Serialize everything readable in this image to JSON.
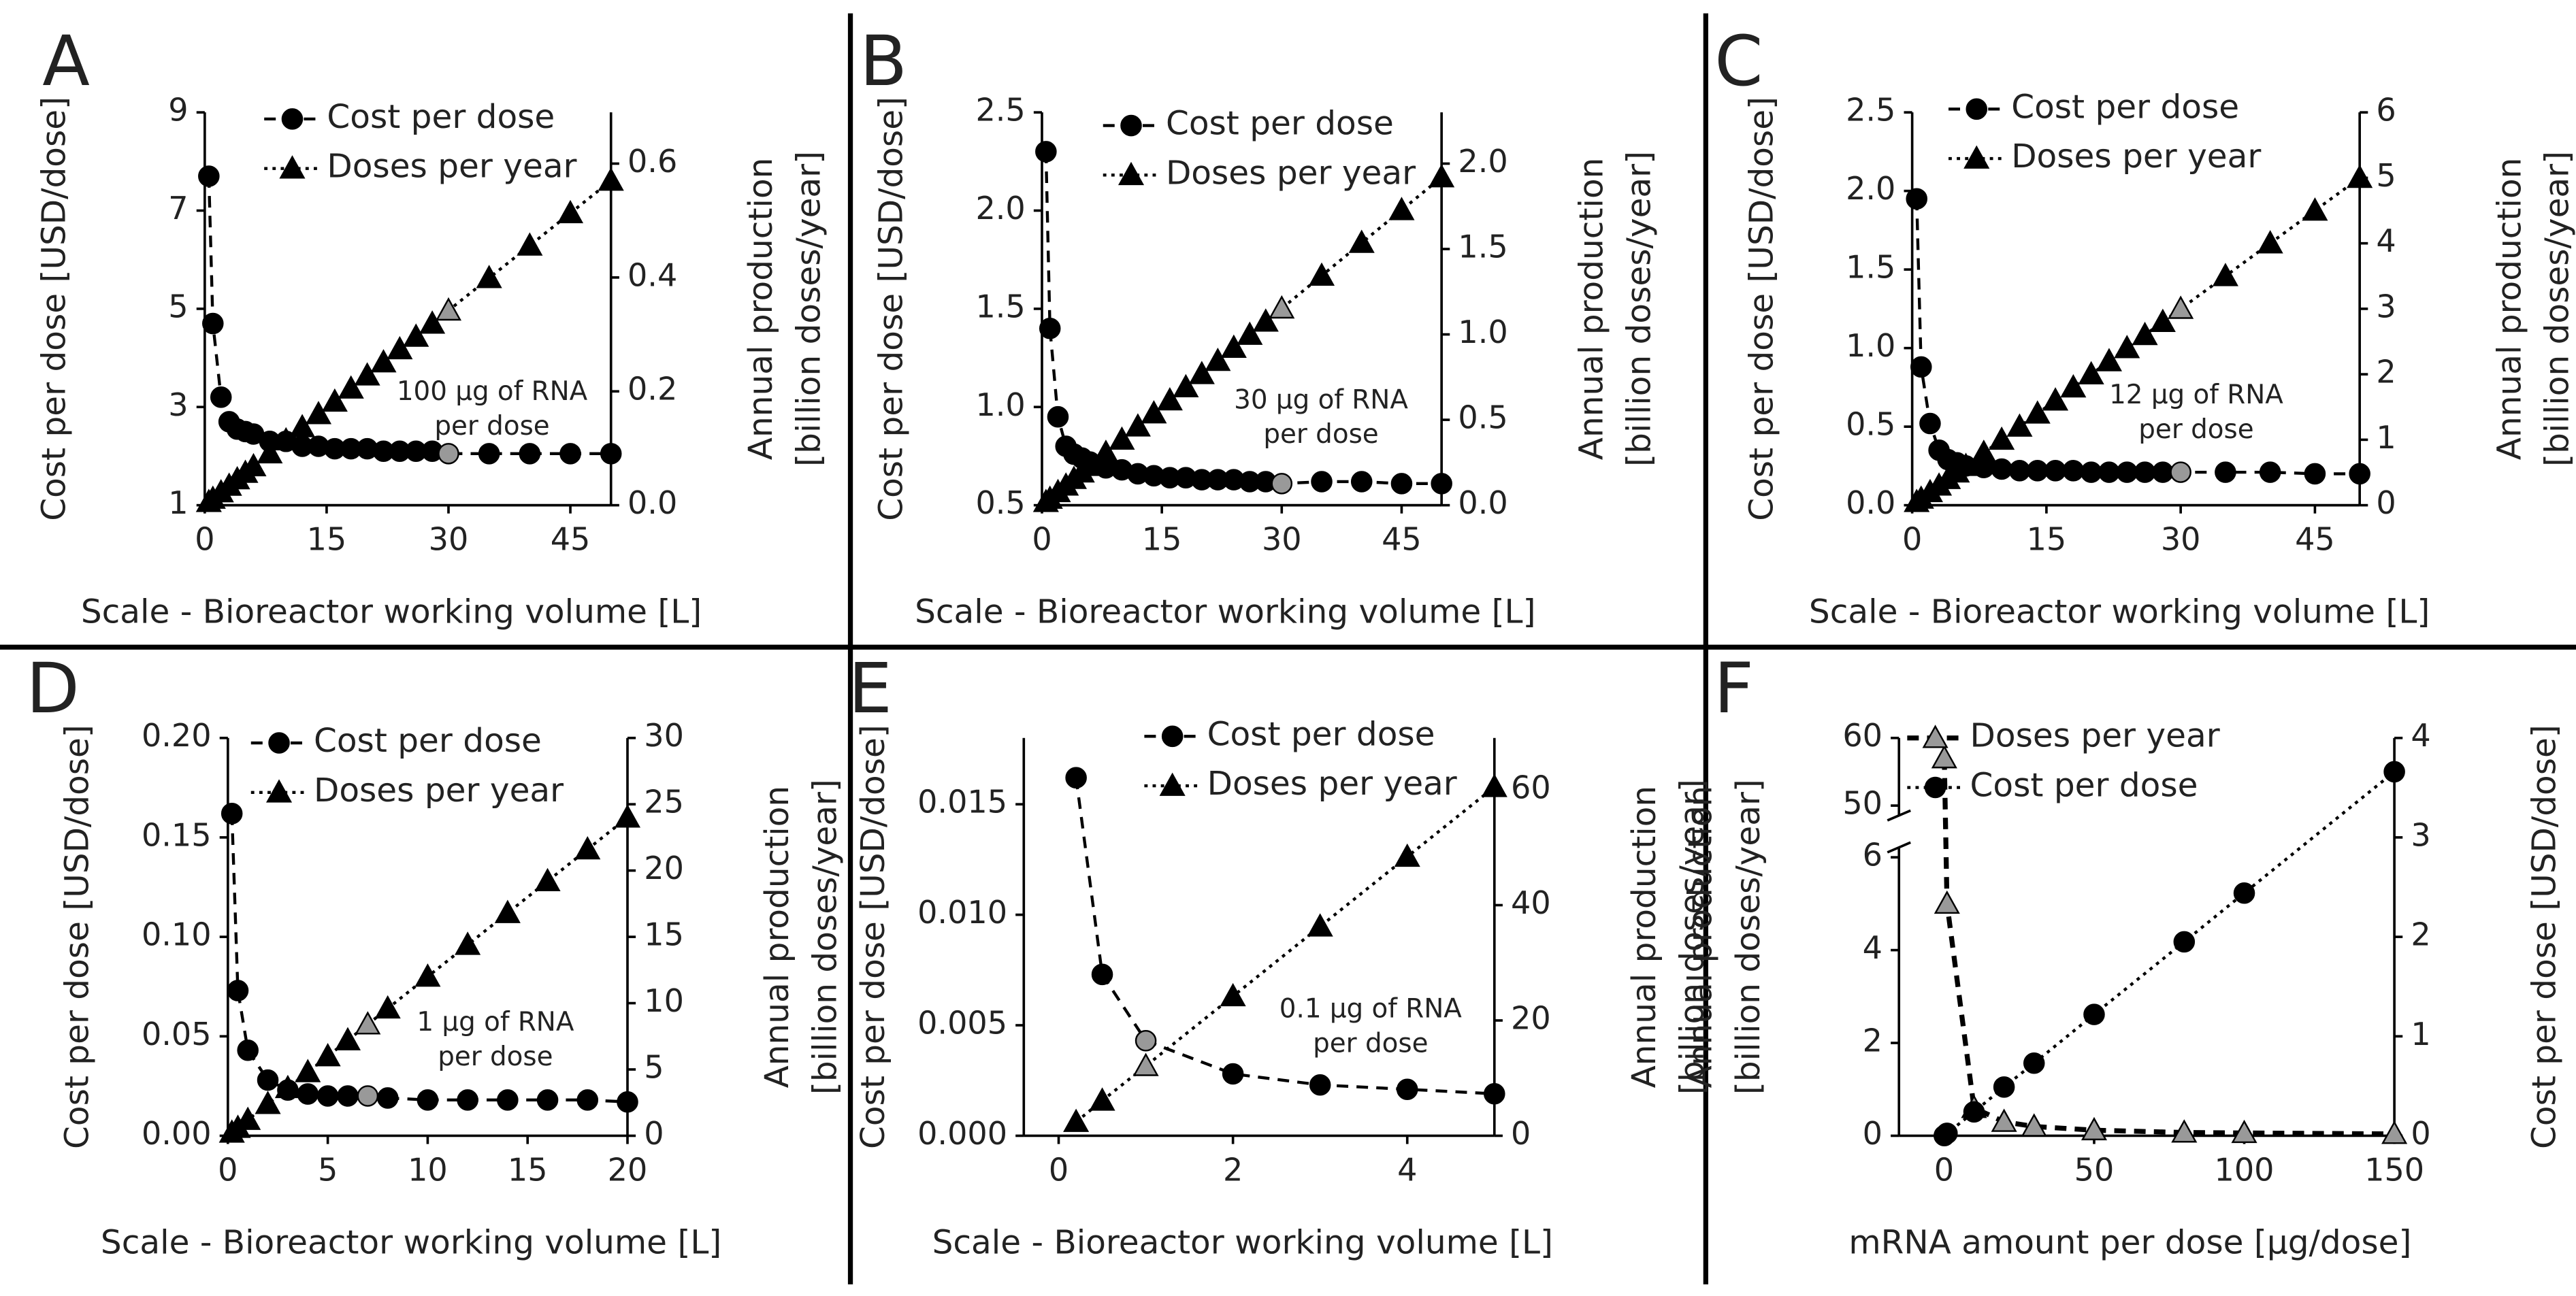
{
  "chart_data": [
    {
      "type": "line",
      "label": "A",
      "xlabel": "Scale - Bioreactor working volume [L]",
      "ylabel": "Cost per dose [USD/dose]",
      "y2label": [
        "Annual production",
        "[billion doses/year]"
      ],
      "annotation": [
        "100 µg of RNA",
        "per dose"
      ],
      "x": [
        0.5,
        1,
        2,
        3,
        4,
        5,
        6,
        8,
        10,
        12,
        14,
        16,
        18,
        20,
        22,
        24,
        26,
        28,
        30,
        35,
        40,
        45,
        50
      ],
      "xlim": [
        0,
        50
      ],
      "xticks": [
        0,
        15,
        30,
        45
      ],
      "ylim": [
        1,
        9
      ],
      "yticks": [
        1,
        3,
        5,
        7,
        9
      ],
      "y2lim": [
        0,
        0.69
      ],
      "y2ticks": [
        {
          "value": 0,
          "label": "0.0"
        },
        {
          "value": 0.2,
          "label": "0.2"
        },
        {
          "value": 0.4,
          "label": "0.4"
        },
        {
          "value": 0.6,
          "label": "0.6"
        }
      ],
      "highlight": {
        "x": 30,
        "color": "#999999"
      },
      "legend": "upper left",
      "series": [
        {
          "name": "Cost per dose",
          "color": "#000000",
          "line_color": "#000000",
          "marker": "circle",
          "linestyle": "dashed",
          "axis": "y",
          "values": [
            7.7,
            4.7,
            3.2,
            2.7,
            2.55,
            2.5,
            2.45,
            2.3,
            2.3,
            2.2,
            2.2,
            2.15,
            2.15,
            2.15,
            2.1,
            2.1,
            2.1,
            2.1,
            2.05,
            2.05,
            2.05,
            2.05,
            2.05
          ]
        },
        {
          "name": "Doses per year",
          "color": "#000000",
          "line_color": "#000000",
          "marker": "triangle",
          "linestyle": "dotted",
          "axis": "y2",
          "values": [
            0.0057,
            0.0114,
            0.0228,
            0.0342,
            0.0456,
            0.057,
            0.0684,
            0.0912,
            0.114,
            0.137,
            0.16,
            0.182,
            0.205,
            0.228,
            0.251,
            0.274,
            0.296,
            0.319,
            0.342,
            0.399,
            0.456,
            0.513,
            0.57
          ]
        }
      ]
    },
    {
      "type": "line",
      "label": "B",
      "xlabel": "Scale - Bioreactor working volume [L]",
      "ylabel": "Cost per dose [USD/dose]",
      "y2label": [
        "Annual production",
        "[billion doses/year]"
      ],
      "annotation": [
        "30 µg of RNA",
        "per dose"
      ],
      "x": [
        0.5,
        1,
        2,
        3,
        4,
        5,
        6,
        8,
        10,
        12,
        14,
        16,
        18,
        20,
        22,
        24,
        26,
        28,
        30,
        35,
        40,
        45,
        50
      ],
      "xlim": [
        0,
        50
      ],
      "xticks": [
        0,
        15,
        30,
        45
      ],
      "ylim": [
        0.5,
        2.5
      ],
      "yticks": [
        {
          "value": 0.5,
          "label": "0.5"
        },
        {
          "value": 1,
          "label": "1.0"
        },
        {
          "value": 1.5,
          "label": "1.5"
        },
        {
          "value": 2,
          "label": "2.0"
        },
        {
          "value": 2.5,
          "label": "2.5"
        }
      ],
      "y2lim": [
        0,
        2.3
      ],
      "y2ticks": [
        {
          "value": 0,
          "label": "0.0"
        },
        {
          "value": 0.5,
          "label": "0.5"
        },
        {
          "value": 1,
          "label": "1.0"
        },
        {
          "value": 1.5,
          "label": "1.5"
        },
        {
          "value": 2,
          "label": "2.0"
        }
      ],
      "highlight": {
        "x": 30,
        "color": "#999999"
      },
      "legend": "upper left",
      "series": [
        {
          "name": "Cost per dose",
          "color": "#000000",
          "line_color": "#000000",
          "marker": "circle",
          "linestyle": "dashed",
          "axis": "y",
          "values": [
            2.3,
            1.4,
            0.95,
            0.8,
            0.76,
            0.74,
            0.72,
            0.69,
            0.68,
            0.66,
            0.65,
            0.64,
            0.64,
            0.63,
            0.63,
            0.63,
            0.62,
            0.62,
            0.61,
            0.62,
            0.62,
            0.61,
            0.61
          ]
        },
        {
          "name": "Doses per year",
          "color": "#000000",
          "line_color": "#000000",
          "marker": "triangle",
          "linestyle": "dotted",
          "axis": "y2",
          "values": [
            0.019,
            0.038,
            0.077,
            0.115,
            0.154,
            0.192,
            0.23,
            0.307,
            0.384,
            0.461,
            0.538,
            0.614,
            0.691,
            0.768,
            0.845,
            0.922,
            0.998,
            1.075,
            1.152,
            1.344,
            1.536,
            1.728,
            1.92
          ]
        }
      ]
    },
    {
      "type": "line",
      "label": "C",
      "xlabel": "Scale - Bioreactor working volume [L]",
      "ylabel": "Cost per dose [USD/dose]",
      "y2label": [
        "Annual production",
        "[billion doses/year]"
      ],
      "annotation": [
        "12 µg of RNA",
        "per dose"
      ],
      "x": [
        0.5,
        1,
        2,
        3,
        4,
        5,
        6,
        8,
        10,
        12,
        14,
        16,
        18,
        20,
        22,
        24,
        26,
        28,
        30,
        35,
        40,
        45,
        50
      ],
      "xlim": [
        0,
        50
      ],
      "xticks": [
        0,
        15,
        30,
        45
      ],
      "ylim": [
        0,
        2.5
      ],
      "yticks": [
        {
          "value": 0,
          "label": "0.0"
        },
        {
          "value": 0.5,
          "label": "0.5"
        },
        {
          "value": 1,
          "label": "1.0"
        },
        {
          "value": 1.5,
          "label": "1.5"
        },
        {
          "value": 2,
          "label": "2.0"
        },
        {
          "value": 2.5,
          "label": "2.5"
        }
      ],
      "y2lim": [
        0,
        6
      ],
      "y2ticks": [
        0,
        1,
        2,
        3,
        4,
        5,
        6
      ],
      "highlight": {
        "x": 30,
        "color": "#999999"
      },
      "legend": "upper left",
      "series": [
        {
          "name": "Cost per dose",
          "color": "#000000",
          "line_color": "#000000",
          "marker": "circle",
          "linestyle": "dashed",
          "axis": "y",
          "values": [
            1.95,
            0.88,
            0.52,
            0.35,
            0.29,
            0.27,
            0.25,
            0.24,
            0.23,
            0.22,
            0.22,
            0.22,
            0.22,
            0.21,
            0.21,
            0.21,
            0.21,
            0.21,
            0.21,
            0.21,
            0.21,
            0.2,
            0.2
          ]
        },
        {
          "name": "Doses per year",
          "color": "#000000",
          "line_color": "#000000",
          "marker": "triangle",
          "linestyle": "dotted",
          "axis": "y2",
          "values": [
            0.05,
            0.1,
            0.2,
            0.3,
            0.4,
            0.5,
            0.6,
            0.8,
            1,
            1.2,
            1.4,
            1.6,
            1.8,
            2,
            2.2,
            2.4,
            2.6,
            2.8,
            3,
            3.5,
            4,
            4.5,
            5
          ]
        }
      ]
    },
    {
      "type": "line",
      "label": "D",
      "xlabel": "Scale - Bioreactor working volume [L]",
      "ylabel": "Cost per dose [USD/dose]",
      "y2label": [
        "Annual production",
        "[billion doses/year]"
      ],
      "annotation": [
        "1 µg of RNA",
        "per dose"
      ],
      "x": [
        0.2,
        0.5,
        1,
        2,
        3,
        4,
        5,
        6,
        7,
        8,
        10,
        12,
        14,
        16,
        18,
        20
      ],
      "xlim": [
        0,
        20
      ],
      "xticks": [
        0,
        5,
        10,
        15,
        20
      ],
      "ylim": [
        0,
        0.2
      ],
      "yticks": [
        {
          "value": 0,
          "label": "0.00"
        },
        {
          "value": 0.05,
          "label": "0.05"
        },
        {
          "value": 0.1,
          "label": "0.10"
        },
        {
          "value": 0.15,
          "label": "0.15"
        },
        {
          "value": 0.2,
          "label": "0.20"
        }
      ],
      "y2lim": [
        0,
        30
      ],
      "y2ticks": [
        0,
        5,
        10,
        15,
        20,
        25,
        30
      ],
      "highlight": {
        "x": 7,
        "color": "#999999"
      },
      "legend": "upper left",
      "series": [
        {
          "name": "Cost per dose",
          "color": "#000000",
          "line_color": "#000000",
          "marker": "circle",
          "linestyle": "dashed",
          "axis": "y",
          "values": [
            0.162,
            0.073,
            0.043,
            0.028,
            0.023,
            0.021,
            0.02,
            0.02,
            0.02,
            0.019,
            0.018,
            0.018,
            0.018,
            0.018,
            0.018,
            0.017
          ]
        },
        {
          "name": "Doses per year",
          "color": "#000000",
          "line_color": "#000000",
          "marker": "triangle",
          "linestyle": "dotted",
          "axis": "y2",
          "values": [
            0.24,
            0.6,
            1.2,
            2.4,
            3.6,
            4.8,
            6,
            7.2,
            8.4,
            9.6,
            12,
            14.4,
            16.8,
            19.2,
            21.6,
            24
          ]
        }
      ]
    },
    {
      "type": "line",
      "label": "E",
      "xlabel": "Scale - Bioreactor working volume [L]",
      "ylabel": "Cost per dose [USD/dose]",
      "y2label": [
        "Annual production",
        "[billion doses/year]"
      ],
      "annotation": [
        "0.1 µg of RNA",
        "per dose"
      ],
      "x": [
        0.2,
        0.5,
        1,
        2,
        3,
        4,
        5
      ],
      "xlim": [
        -0.4,
        5
      ],
      "xticks": [
        0,
        2,
        4
      ],
      "ylim": [
        0,
        0.018
      ],
      "yticks": [
        {
          "value": 0,
          "label": "0.000"
        },
        {
          "value": 0.005,
          "label": "0.005"
        },
        {
          "value": 0.01,
          "label": "0.010"
        },
        {
          "value": 0.015,
          "label": "0.015"
        }
      ],
      "y2lim": [
        0,
        69
      ],
      "y2ticks": [
        0,
        20,
        40,
        60
      ],
      "highlight": {
        "x": 1,
        "color": "#999999"
      },
      "legend": "upper left",
      "series": [
        {
          "name": "Cost per dose",
          "color": "#000000",
          "line_color": "#000000",
          "marker": "circle",
          "linestyle": "dashed",
          "axis": "y",
          "values": [
            0.0162,
            0.0073,
            0.0043,
            0.0028,
            0.0023,
            0.0021,
            0.0019
          ]
        },
        {
          "name": "Doses per year",
          "color": "#000000",
          "line_color": "#000000",
          "marker": "triangle",
          "linestyle": "dotted",
          "axis": "y2",
          "values": [
            2.4,
            6.1,
            12.1,
            24.2,
            36.3,
            48.4,
            60.5
          ]
        }
      ]
    },
    {
      "type": "line",
      "label": "F",
      "xlabel": "mRNA amount per dose [µg/dose]",
      "ylabel": [
        "Annual production",
        "[billion doses/year]"
      ],
      "y2label": "Cost per dose [USD/dose]",
      "x": [
        0.1,
        1,
        10,
        20,
        30,
        50,
        80,
        100,
        150
      ],
      "xlim": [
        -15,
        150
      ],
      "xticks": [
        0,
        50,
        100,
        150
      ],
      "ylim": [
        0,
        60
      ],
      "ybreak": [
        6,
        50
      ],
      "yticks": [
        0,
        2,
        4,
        6,
        50,
        60
      ],
      "y2lim": [
        0,
        4
      ],
      "y2ticks": [
        0,
        1,
        2,
        3,
        4
      ],
      "legend": "upper left",
      "series": [
        {
          "name": "Doses per year",
          "color": "#999999",
          "line_color": "#000000",
          "line_width": 3,
          "marker": "triangle",
          "linestyle": "dashed",
          "axis": "y",
          "values": [
            57,
            5,
            0.6,
            0.3,
            0.2,
            0.12,
            0.07,
            0.06,
            0.04
          ]
        },
        {
          "name": "Cost per dose",
          "color": "#000000",
          "line_color": "#000000",
          "marker": "circle",
          "linestyle": "dotted",
          "axis": "y2",
          "values": [
            0.0016,
            0.024,
            0.24,
            0.49,
            0.73,
            1.22,
            1.95,
            2.44,
            3.66
          ]
        }
      ]
    }
  ]
}
